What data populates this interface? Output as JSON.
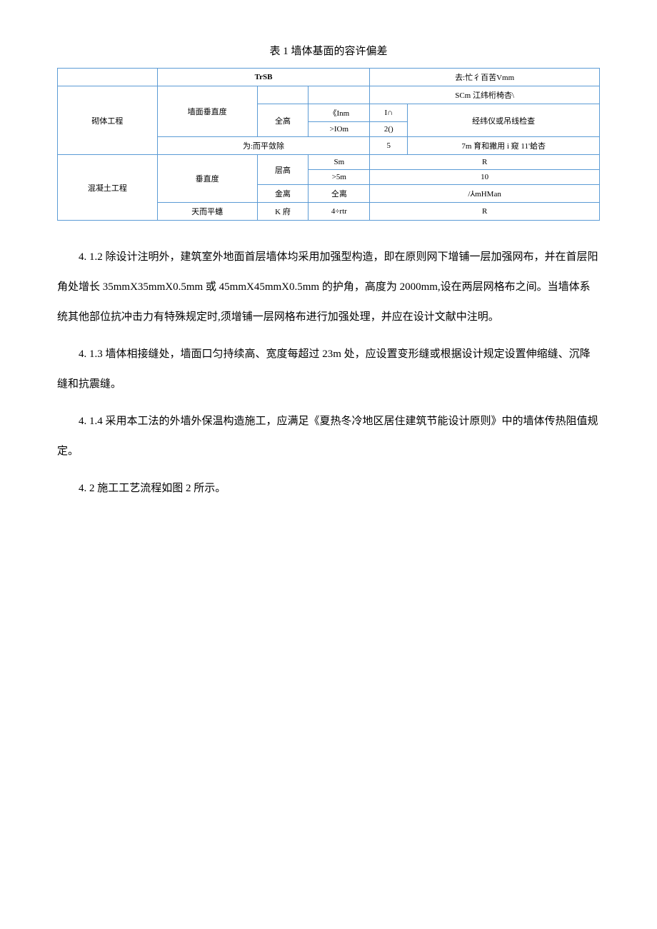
{
  "tableTitle": "表 1 墙体基面的容许偏差",
  "table": {
    "headers": {
      "col2_3": "TrSB",
      "col4_5": "去:忙彳百苦Vmm"
    },
    "rows": [
      {
        "category": "砌体工程",
        "item": "墙面垂直度",
        "sub1": "全高",
        "cond1": "《Inm",
        "val1": "I∩",
        "note_top": "SCm 江纬桁椅杏\\",
        "note": "经纬仪或吊线检查",
        "cond2": ">IOm",
        "val2": "2()"
      },
      {
        "item": "为:而平敛除",
        "val": "5",
        "note": "7m 育和撇用 i 窥 11'蛤杏"
      },
      {
        "category": "混凝土工程",
        "item": "垂直度",
        "sub1": "层高",
        "cond1": "Sm",
        "val1": "R",
        "cond2": ">5m",
        "val2": "10",
        "sub2": "金离",
        "cond3": "仝离",
        "val3": "/⅄mHMan"
      },
      {
        "item": "天而平蟪",
        "sub": "K 府",
        "cond": "4÷rtr",
        "val": "R"
      }
    ]
  },
  "paragraphs": [
    "4.  1.2 除设计注明外，建筑室外地面首层墙体均采用加强型构造，即在原则网下增铺一层加强网布，并在首层阳角处增长 35mmX35mmX0.5mm 或 45mmX45mmX0.5mm 的护角，高度为 2000mm,设在两层网格布之间。当墙体系统其他部位抗冲击力有特殊规定时,须增铺一层网格布进行加强处理，并应在设计文献中注明。",
    "4.  1.3 墙体相接缝处，墙面口匀持续高、宽度每超过 23m 处，应设置变形缝或根据设计规定设置伸缩缝、沉降缝和抗震缝。",
    "4.  1.4 采用本工法的外墙外保温构造施工，应满足《夏热冬冷地区居住建筑节能设计原则》中的墙体传热阻值规定。",
    "4.  2 施工工艺流程如图 2 所示。"
  ]
}
